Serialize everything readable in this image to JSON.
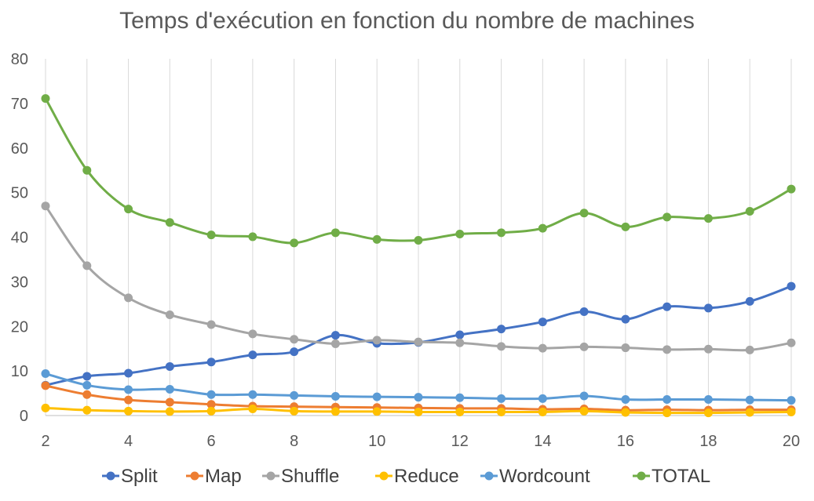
{
  "chart_data": {
    "type": "line",
    "title": "Temps d'exécution en fonction du nombre de machines",
    "xlabel": "",
    "ylabel": "",
    "xlim": [
      2,
      20
    ],
    "ylim": [
      0,
      80
    ],
    "x_ticks": [
      2,
      4,
      6,
      8,
      10,
      12,
      14,
      16,
      18,
      20
    ],
    "y_ticks": [
      0,
      10,
      20,
      30,
      40,
      50,
      60,
      70,
      80
    ],
    "grid": "vertical",
    "legend_position": "bottom",
    "smooth": true,
    "x": [
      2,
      3,
      4,
      5,
      6,
      7,
      8,
      9,
      10,
      11,
      12,
      13,
      14,
      15,
      16,
      17,
      18,
      19,
      20
    ],
    "series": [
      {
        "name": "Split",
        "color": "#4472C4",
        "values": [
          6.8,
          8.8,
          9.5,
          11.0,
          12.0,
          13.6,
          14.3,
          18.0,
          16.2,
          16.4,
          18.1,
          19.4,
          21.0,
          23.3,
          21.6,
          24.4,
          24.1,
          25.6,
          29.0
        ]
      },
      {
        "name": "Map",
        "color": "#ED7D31",
        "values": [
          6.7,
          4.7,
          3.5,
          3.0,
          2.5,
          2.1,
          2.0,
          1.9,
          1.8,
          1.7,
          1.6,
          1.6,
          1.4,
          1.5,
          1.2,
          1.3,
          1.2,
          1.3,
          1.3
        ]
      },
      {
        "name": "Shuffle",
        "color": "#A5A5A5",
        "values": [
          47.0,
          33.6,
          26.4,
          22.6,
          20.4,
          18.3,
          17.1,
          16.1,
          16.9,
          16.5,
          16.3,
          15.5,
          15.1,
          15.4,
          15.2,
          14.8,
          14.9,
          14.7,
          16.3
        ]
      },
      {
        "name": "Reduce",
        "color": "#FFC000",
        "values": [
          1.7,
          1.2,
          1.0,
          0.9,
          1.0,
          1.5,
          1.0,
          0.9,
          0.9,
          0.8,
          0.8,
          0.8,
          0.8,
          1.0,
          0.7,
          0.6,
          0.6,
          0.7,
          0.8
        ]
      },
      {
        "name": "Wordcount",
        "color": "#5B9BD5",
        "values": [
          9.4,
          6.8,
          5.8,
          5.9,
          4.7,
          4.7,
          4.5,
          4.3,
          4.2,
          4.1,
          4.0,
          3.8,
          3.8,
          4.4,
          3.6,
          3.6,
          3.6,
          3.5,
          3.4
        ]
      },
      {
        "name": "TOTAL",
        "color": "#70AD47",
        "values": [
          71.1,
          55.0,
          46.3,
          43.3,
          40.5,
          40.1,
          38.7,
          41.0,
          39.5,
          39.3,
          40.7,
          41.0,
          42.0,
          45.4,
          42.3,
          44.5,
          44.2,
          45.8,
          50.8
        ]
      }
    ]
  }
}
